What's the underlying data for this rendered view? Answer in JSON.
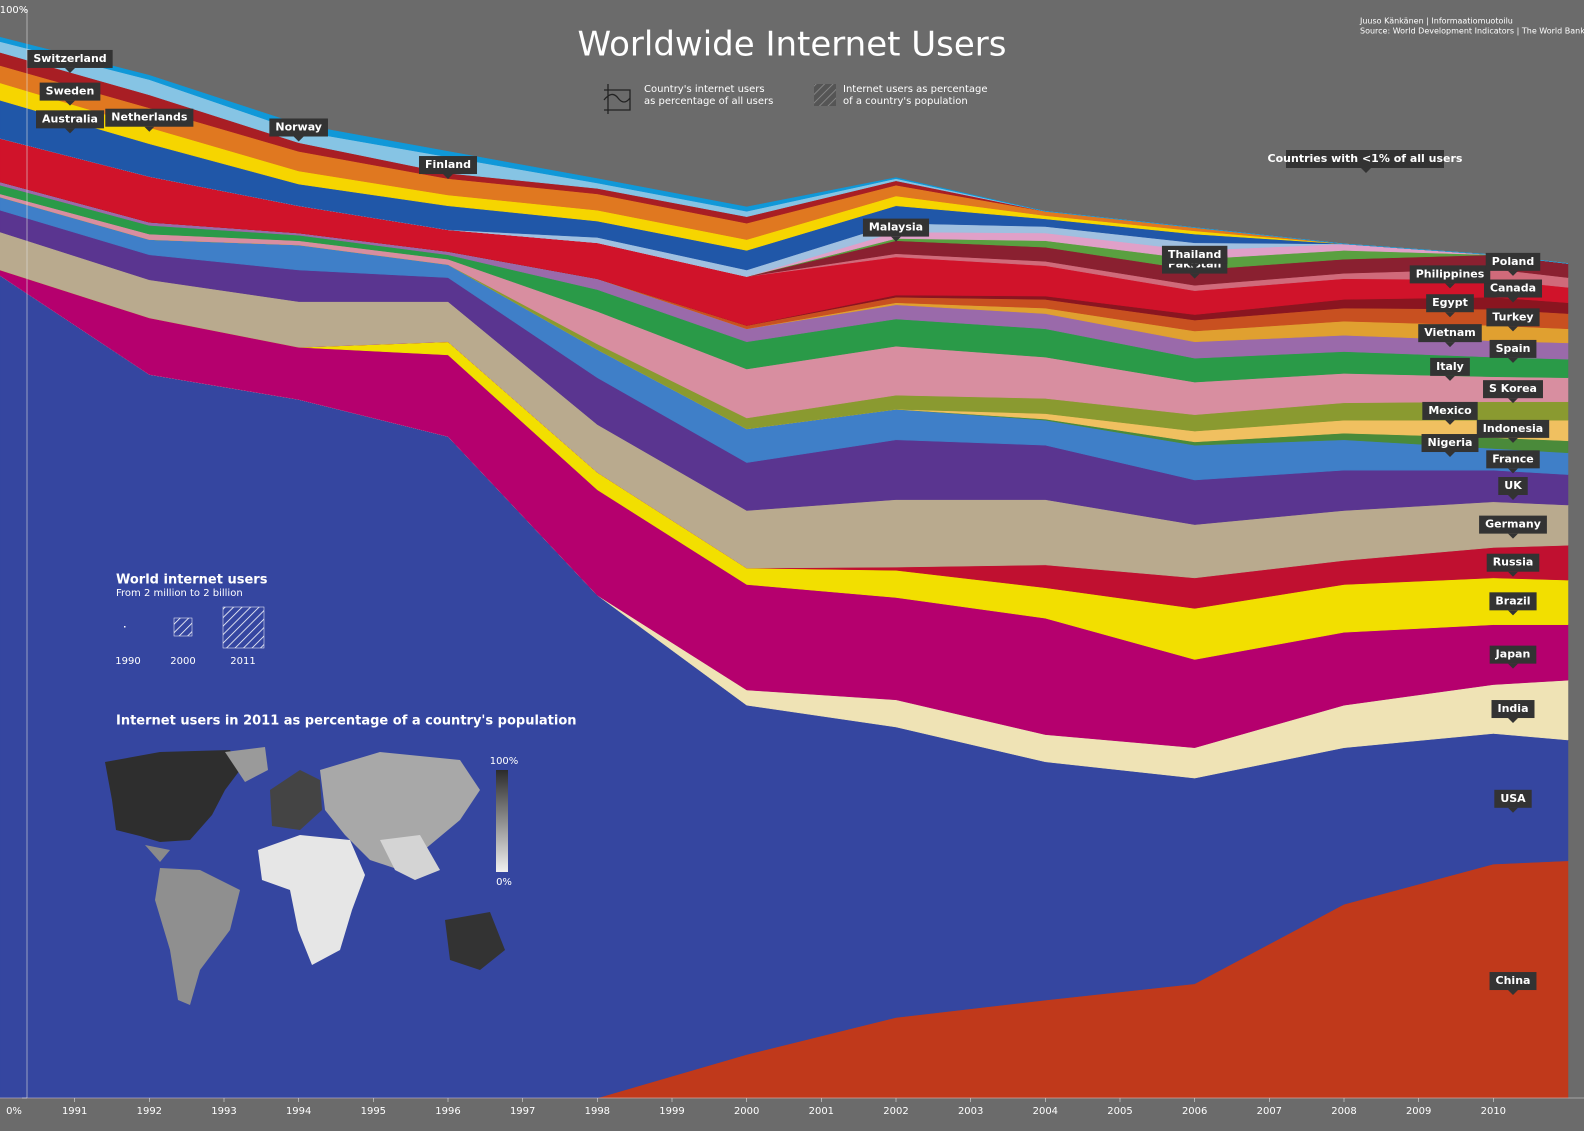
{
  "chart_data": {
    "type": "stacked-area",
    "title": "Worldwide Internet Users",
    "credits": [
      "Juuso Känkänen | Informaatiomuotoilu",
      "Source: World Development Indicators | The World Bank"
    ],
    "legend": [
      {
        "lines": [
          "Country's internet users",
          "as percentage of all users"
        ]
      },
      {
        "lines": [
          "Internet users as percentage",
          "of a country's population"
        ]
      }
    ],
    "annotation": "Countries with <1% of all users",
    "x": [
      1990,
      1992,
      1994,
      1996,
      1998,
      2000,
      2002,
      2004,
      2006,
      2008,
      2010,
      2011
    ],
    "xlim": [
      1990,
      2011
    ],
    "xticks": [
      1991,
      1992,
      1993,
      1994,
      1995,
      1996,
      1997,
      1998,
      1999,
      2000,
      2001,
      2002,
      2003,
      2004,
      2005,
      2006,
      2007,
      2008,
      2009,
      2010
    ],
    "ylim": [
      0,
      100
    ],
    "yticks": [
      {
        "value": 0,
        "label": "0%"
      },
      {
        "value": 100,
        "label": "100%"
      }
    ],
    "series": [
      {
        "name": "China",
        "color": "#c0391b",
        "values": [
          0,
          0,
          0,
          0,
          0,
          4.0,
          7.4,
          9.0,
          10.5,
          17.8,
          21.5,
          21.8
        ]
      },
      {
        "name": "USA",
        "color": "#3546a0",
        "values": [
          75.6,
          66.5,
          64.2,
          60.8,
          46.2,
          32.1,
          26.7,
          21.9,
          18.9,
          14.4,
          12.0,
          11.1
        ]
      },
      {
        "name": "India",
        "color": "#efe3b5",
        "values": [
          0,
          0,
          0,
          0,
          0,
          1.4,
          2.5,
          2.5,
          2.8,
          3.9,
          4.5,
          5.5
        ]
      },
      {
        "name": "Japan",
        "color": "#b5006e",
        "values": [
          0.5,
          5.2,
          4.8,
          7.5,
          9.7,
          9.7,
          9.4,
          10.7,
          8.1,
          6.7,
          5.5,
          5.1
        ]
      },
      {
        "name": "Brazil",
        "color": "#f2df00",
        "values": [
          0,
          0,
          0,
          1.2,
          1.6,
          1.5,
          2.5,
          2.8,
          4.7,
          4.4,
          4.3,
          4.1
        ]
      },
      {
        "name": "Russia",
        "color": "#c01030",
        "values": [
          0,
          0,
          0,
          0,
          0,
          0,
          0.3,
          2.1,
          2.8,
          2.2,
          2.8,
          3.2
        ]
      },
      {
        "name": "Germany",
        "color": "#b9aa8e",
        "values": [
          3.5,
          3.5,
          4.2,
          3.7,
          4.4,
          5.3,
          6.2,
          6.0,
          4.9,
          4.6,
          4.2,
          3.7
        ]
      },
      {
        "name": "UK",
        "color": "#5a3590",
        "values": [
          2.0,
          2.3,
          2.9,
          2.2,
          4.3,
          4.4,
          5.5,
          5.0,
          4.1,
          3.7,
          2.9,
          2.8
        ]
      },
      {
        "name": "France",
        "color": "#3f7fc8",
        "values": [
          1.2,
          1.4,
          2.3,
          1.2,
          2.6,
          3.1,
          2.8,
          2.3,
          3.2,
          2.8,
          2.0,
          2.0
        ]
      },
      {
        "name": "Nigeria",
        "color": "#4a8a3a",
        "values": [
          0,
          0,
          0,
          0,
          0,
          0,
          0,
          0.1,
          0.3,
          0.6,
          1.0,
          1.1
        ]
      },
      {
        "name": "Indonesia",
        "color": "#f0c060",
        "values": [
          0,
          0,
          0,
          0,
          0,
          0,
          0,
          0.5,
          1.0,
          1.2,
          1.6,
          1.9
        ]
      },
      {
        "name": "Mexico",
        "color": "#8a9a30",
        "values": [
          0,
          0,
          0,
          0,
          0.5,
          1.0,
          1.3,
          1.4,
          1.5,
          1.6,
          1.7,
          1.7
        ]
      },
      {
        "name": "S Korea",
        "color": "#d88ea0",
        "values": [
          0.3,
          0.5,
          0.4,
          0.5,
          3.0,
          4.5,
          4.5,
          3.8,
          3.0,
          2.7,
          2.3,
          2.2
        ]
      },
      {
        "name": "Italy",
        "color": "#2a9a48",
        "values": [
          0.8,
          0.8,
          0.5,
          0.4,
          2.0,
          2.5,
          2.5,
          2.6,
          2.2,
          2.0,
          1.8,
          1.7
        ]
      },
      {
        "name": "Spain",
        "color": "#9a6aaa",
        "values": [
          0.3,
          0.3,
          0.2,
          0.3,
          1.0,
          1.2,
          1.3,
          1.4,
          1.5,
          1.5,
          1.5,
          1.5
        ]
      },
      {
        "name": "Vietnam",
        "color": "#e0a030",
        "values": [
          0,
          0,
          0,
          0,
          0,
          0,
          0.2,
          0.5,
          1.0,
          1.3,
          1.4,
          1.3
        ]
      },
      {
        "name": "Turkey",
        "color": "#c85020",
        "values": [
          0,
          0,
          0,
          0,
          0,
          0.3,
          0.5,
          0.8,
          1.0,
          1.2,
          1.5,
          1.4
        ]
      },
      {
        "name": "Egypt",
        "color": "#8a1520",
        "values": [
          0,
          0,
          0,
          0,
          0,
          0,
          0.2,
          0.3,
          0.5,
          0.8,
          1.1,
          1.0
        ]
      },
      {
        "name": "Canada",
        "color": "#d0132a",
        "values": [
          4.0,
          4.2,
          2.5,
          2.0,
          3.3,
          4.5,
          3.5,
          2.8,
          2.2,
          1.9,
          1.6,
          1.4
        ]
      },
      {
        "name": "Philippines",
        "color": "#d06a7a",
        "values": [
          0,
          0,
          0,
          0,
          0,
          0,
          0.3,
          0.4,
          0.5,
          0.5,
          1.0,
          0.9
        ]
      },
      {
        "name": "Poland",
        "color": "#8a2030",
        "values": [
          0,
          0,
          0,
          0,
          0,
          0,
          1.2,
          1.3,
          1.4,
          1.3,
          1.3,
          1.3
        ]
      },
      {
        "name": "Pakistan",
        "color": "#5aa040",
        "values": [
          0,
          0,
          0,
          0,
          0,
          0,
          0.2,
          0.6,
          1.0,
          0.8,
          0,
          0
        ]
      },
      {
        "name": "Thailand",
        "color": "#e0a0c8",
        "values": [
          0,
          0,
          0,
          0,
          0,
          0,
          0.6,
          0.7,
          0.8,
          0.6,
          0,
          0
        ]
      },
      {
        "name": "Malaysia",
        "color": "#a0c0e0",
        "values": [
          0,
          0,
          0,
          0,
          0.5,
          0.6,
          0.8,
          0.6,
          0.7,
          0,
          0,
          0
        ]
      },
      {
        "name": "Australia",
        "color": "#2057a8",
        "values": [
          3.5,
          3.0,
          2.0,
          2.2,
          1.5,
          1.8,
          1.6,
          0.7,
          0.8,
          0,
          0,
          0
        ]
      },
      {
        "name": "Sweden",
        "color": "#f6d500",
        "values": [
          1.6,
          1.5,
          1.2,
          1.0,
          1.0,
          1.0,
          0.9,
          0.3,
          0.3,
          0,
          0,
          0
        ]
      },
      {
        "name": "Netherlands",
        "color": "#e07820",
        "values": [
          1.6,
          1.8,
          1.8,
          1.5,
          1.5,
          1.5,
          1.0,
          0.4,
          0.3,
          0,
          0,
          0
        ]
      },
      {
        "name": "Switzerland",
        "color": "#a81e24",
        "values": [
          1.2,
          1.2,
          0.8,
          0.5,
          0.5,
          0.6,
          0.4,
          0,
          0,
          0,
          0,
          0
        ]
      },
      {
        "name": "Finland",
        "color": "#86c4e4",
        "values": [
          1.0,
          1.4,
          1.1,
          1.5,
          0.5,
          0.5,
          0.2,
          0,
          0,
          0,
          0,
          0
        ]
      },
      {
        "name": "Norway",
        "color": "#1098d8",
        "values": [
          0.4,
          0.4,
          0.6,
          0.5,
          0.4,
          0.4,
          0.1,
          0,
          0,
          0,
          0,
          0
        ]
      }
    ],
    "inset": {
      "title": "World internet users",
      "subtitle": "From 2 million to 2 billion",
      "years": [
        "1990",
        "2000",
        "2011"
      ]
    },
    "map": {
      "title": "Internet users in 2011 as percentage of a country's population",
      "scale_top": "100%",
      "scale_bottom": "0%"
    }
  }
}
